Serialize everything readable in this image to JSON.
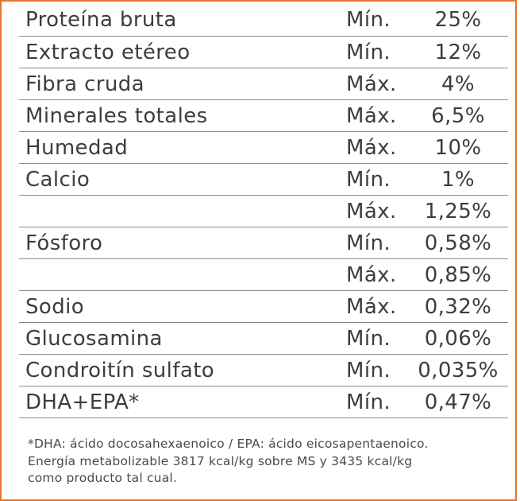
{
  "rows": [
    {
      "name": "Proteína bruta",
      "qualifier": "Mín.",
      "value": "25%"
    },
    {
      "name": "Extracto etéreo",
      "qualifier": "Mín.",
      "value": "12%"
    },
    {
      "name": "Fibra cruda",
      "qualifier": "Máx.",
      "value": "4%"
    },
    {
      "name": "Minerales totales",
      "qualifier": "Máx.",
      "value": "6,5%"
    },
    {
      "name": "Humedad",
      "qualifier": "Máx.",
      "value": "10%"
    },
    {
      "name": "Calcio",
      "qualifier": "Mín.",
      "value": "1%"
    },
    {
      "name": "",
      "qualifier": "Máx.",
      "value": "1,25%"
    },
    {
      "name": "Fósforo",
      "qualifier": "Mín.",
      "value": "0,58%"
    },
    {
      "name": "",
      "qualifier": "Máx.",
      "value": "0,85%"
    },
    {
      "name": "Sodio",
      "qualifier": "Máx.",
      "value": "0,32%"
    },
    {
      "name": "Glucosamina",
      "qualifier": "Mín.",
      "value": "0,06%"
    },
    {
      "name": "Condroitín sulfato",
      "qualifier": "Mín.",
      "value": "0,035%"
    },
    {
      "name": "DHA+EPA*",
      "qualifier": "Mín.",
      "value": "0,47%"
    }
  ],
  "footnote": {
    "line1": "*DHA: ácido docosahexaenoico / EPA: ácido eicosapentaenoico.",
    "line2": "Energía metabolizable 3817 kcal/kg sobre MS y 3435 kcal/kg",
    "line3": "como producto tal cual."
  },
  "colors": {
    "border": "#e8732a",
    "text": "#3d3d3d",
    "rule": "#8a8a8a"
  }
}
